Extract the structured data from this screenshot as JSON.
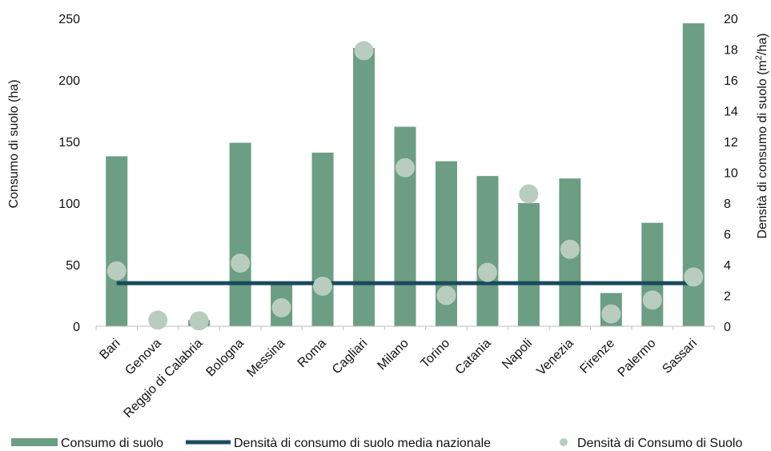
{
  "chart_data": {
    "type": "bar",
    "title": "",
    "categories": [
      "Bari",
      "Genova",
      "Reggio di Calabria",
      "Bologna",
      "Messina",
      "Roma",
      "Cagliari",
      "Milano",
      "Torino",
      "Catania",
      "Napoli",
      "Venezia",
      "Firenze",
      "Palermo",
      "Sassari"
    ],
    "series": [
      {
        "name": "Consumo di suolo",
        "kind": "bar",
        "axis": "left",
        "color": "#6b9e82",
        "values": [
          138,
          0,
          5,
          149,
          35,
          141,
          226,
          162,
          134,
          122,
          100,
          120,
          27,
          84,
          246
        ]
      },
      {
        "name": "Densità di consumo di suolo  media nazionale",
        "kind": "line",
        "axis": "right",
        "color": "#1b4a5e",
        "values": [
          2.8,
          2.8,
          2.8,
          2.8,
          2.8,
          2.8,
          2.8,
          2.8,
          2.8,
          2.8,
          2.8,
          2.8,
          2.8,
          2.8,
          2.8
        ]
      },
      {
        "name": "Densità di Consumo di Suolo",
        "kind": "scatter",
        "axis": "right",
        "color": "#b9cdbf",
        "values": [
          3.6,
          0.4,
          0.35,
          4.1,
          1.2,
          2.6,
          17.9,
          10.3,
          2.0,
          3.5,
          8.6,
          5.0,
          0.8,
          1.7,
          3.2
        ]
      }
    ],
    "ylabel": "Consumo di suolo (ha)",
    "ylabel_right": "Densità di consumo di suolo (m²/ha)",
    "ylim": [
      0,
      250
    ],
    "yticks": [
      "0",
      "50",
      "100",
      "150",
      "200",
      "250"
    ],
    "ylim_right": [
      0,
      20
    ],
    "yticks_right": [
      "0",
      "2",
      "4",
      "6",
      "8",
      "10",
      "12",
      "14",
      "16",
      "18",
      "20"
    ],
    "grid": false,
    "legend_position": "bottom"
  }
}
